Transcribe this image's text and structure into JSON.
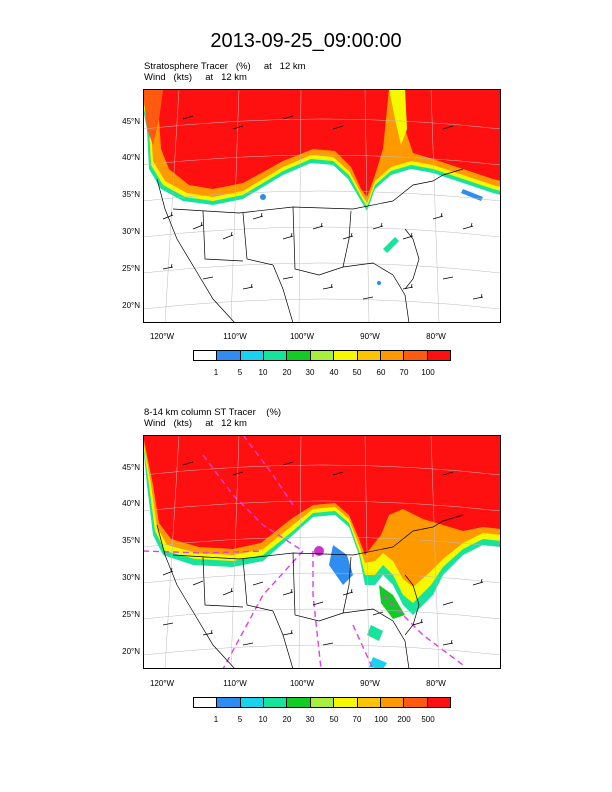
{
  "title": "2013-09-25_09:00:00",
  "panels": [
    {
      "line1": "Stratosphere Tracer   (%)     at   12 km",
      "line2": "Wind   (kts)     at   12 km",
      "lat_labels": [
        "45°N",
        "40°N",
        "35°N",
        "30°N",
        "25°N",
        "20°N"
      ],
      "lon_labels": [
        "120°W",
        "110°W",
        "100°W",
        "90°W",
        "80°W"
      ],
      "colorbar_labels": [
        "1",
        "5",
        "10",
        "20",
        "30",
        "40",
        "50",
        "60",
        "70",
        "100"
      ]
    },
    {
      "line1": "8-14 km column ST Tracer    (%)",
      "line2": "Wind   (kts)     at   12 km",
      "lat_labels": [
        "45°N",
        "40°N",
        "35°N",
        "30°N",
        "25°N",
        "20°N"
      ],
      "lon_labels": [
        "120°W",
        "110°W",
        "100°W",
        "90°W",
        "80°W"
      ],
      "colorbar_labels": [
        "1",
        "5",
        "10",
        "20",
        "30",
        "50",
        "70",
        "100",
        "200",
        "500"
      ]
    }
  ],
  "colorbar_colors": [
    "#ffffff",
    "#2f8cf0",
    "#19d2f0",
    "#16e39c",
    "#11cc22",
    "#a6ef3c",
    "#f6f800",
    "#fcc400",
    "#ff9900",
    "#ff5a10",
    "#ff1010"
  ]
}
